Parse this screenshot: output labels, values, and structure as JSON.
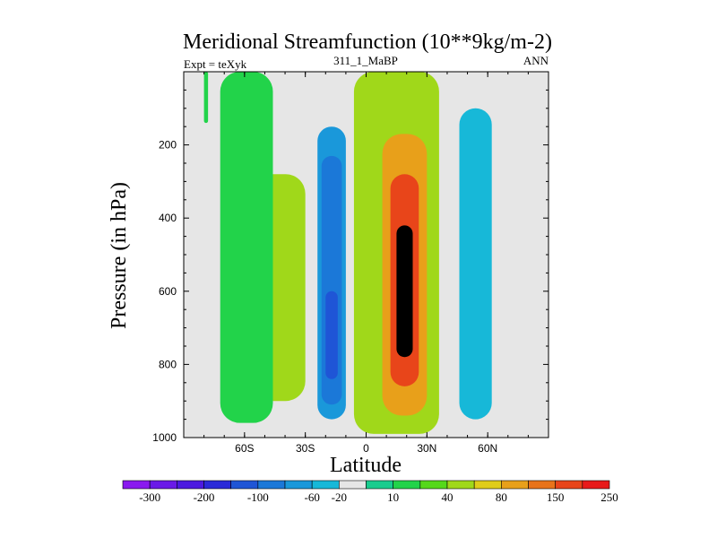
{
  "chart_data": {
    "type": "heatmap",
    "title": "Meridional Streamfunction (10**9kg/m-2)",
    "left_label": "Expt = teXyk",
    "center_label": "311_1_MaBP",
    "right_label": "ANN",
    "xlabel": "Latitude",
    "ylabel": "Pressure (in hPa)",
    "xlim": [
      -90,
      90
    ],
    "ylim": [
      1000,
      0
    ],
    "x_ticks": [
      {
        "value": -60,
        "label": "60S"
      },
      {
        "value": -30,
        "label": "30S"
      },
      {
        "value": 0,
        "label": "0"
      },
      {
        "value": 30,
        "label": "30N"
      },
      {
        "value": 60,
        "label": "60N"
      }
    ],
    "y_ticks": [
      {
        "value": 200,
        "label": "200"
      },
      {
        "value": 400,
        "label": "400"
      },
      {
        "value": 600,
        "label": "600"
      },
      {
        "value": 800,
        "label": "800"
      },
      {
        "value": 1000,
        "label": "1000"
      }
    ],
    "colorbar": {
      "colors": [
        "#8a1aef",
        "#6a1ae8",
        "#4c1ae0",
        "#2a2ad8",
        "#1f55d6",
        "#1b78d8",
        "#1a98da",
        "#17b8d8",
        "#e6e6e6",
        "#19cc8e",
        "#22d34a",
        "#55d81a",
        "#a0d81a",
        "#e0cc1a",
        "#e8a01a",
        "#e8731a",
        "#e8451a",
        "#e81a1a"
      ],
      "labels": [
        "-300",
        "-200",
        "-100",
        "-60",
        "-20",
        "10",
        "40",
        "80",
        "150",
        "250"
      ],
      "label_after_box": [
        1,
        3,
        5,
        7,
        8,
        10,
        12,
        14,
        16,
        18
      ]
    },
    "contour_levels": [
      -300,
      -250,
      -200,
      -150,
      -100,
      -80,
      -60,
      -40,
      -20,
      -10,
      10,
      20,
      40,
      60,
      80,
      100,
      150,
      200,
      250
    ],
    "missing_color": "#e6e6e6",
    "cells": [
      {
        "level": 12,
        "xrange": [
          -58,
          -30
        ],
        "yrange": [
          280,
          900
        ]
      },
      {
        "level": 10,
        "xrange": [
          -72,
          -46
        ],
        "yrange": [
          0,
          960
        ]
      },
      {
        "level": 10,
        "xrange": [
          -80,
          -78
        ],
        "yrange": [
          0,
          140
        ]
      },
      {
        "level": 8,
        "xrange": [
          -28,
          -8
        ],
        "yrange": [
          0,
          990
        ]
      },
      {
        "level": 6,
        "xrange": [
          -24,
          -10
        ],
        "yrange": [
          150,
          950
        ]
      },
      {
        "level": 5,
        "xrange": [
          -22,
          -12
        ],
        "yrange": [
          230,
          910
        ]
      },
      {
        "level": 4,
        "xrange": [
          -20,
          -14
        ],
        "yrange": [
          600,
          840
        ]
      },
      {
        "level": 12,
        "xrange": [
          -6,
          36
        ],
        "yrange": [
          0,
          990
        ]
      },
      {
        "level": 14,
        "xrange": [
          8,
          30
        ],
        "yrange": [
          170,
          940
        ]
      },
      {
        "level": 16,
        "xrange": [
          12,
          26
        ],
        "yrange": [
          280,
          860
        ]
      },
      {
        "level": 18,
        "xrange": [
          15,
          23
        ],
        "yrange": [
          420,
          780
        ]
      },
      {
        "level": 8,
        "xrange": [
          44,
          66
        ],
        "yrange": [
          0,
          980
        ]
      },
      {
        "level": 7,
        "xrange": [
          46,
          62
        ],
        "yrange": [
          100,
          950
        ]
      }
    ]
  }
}
